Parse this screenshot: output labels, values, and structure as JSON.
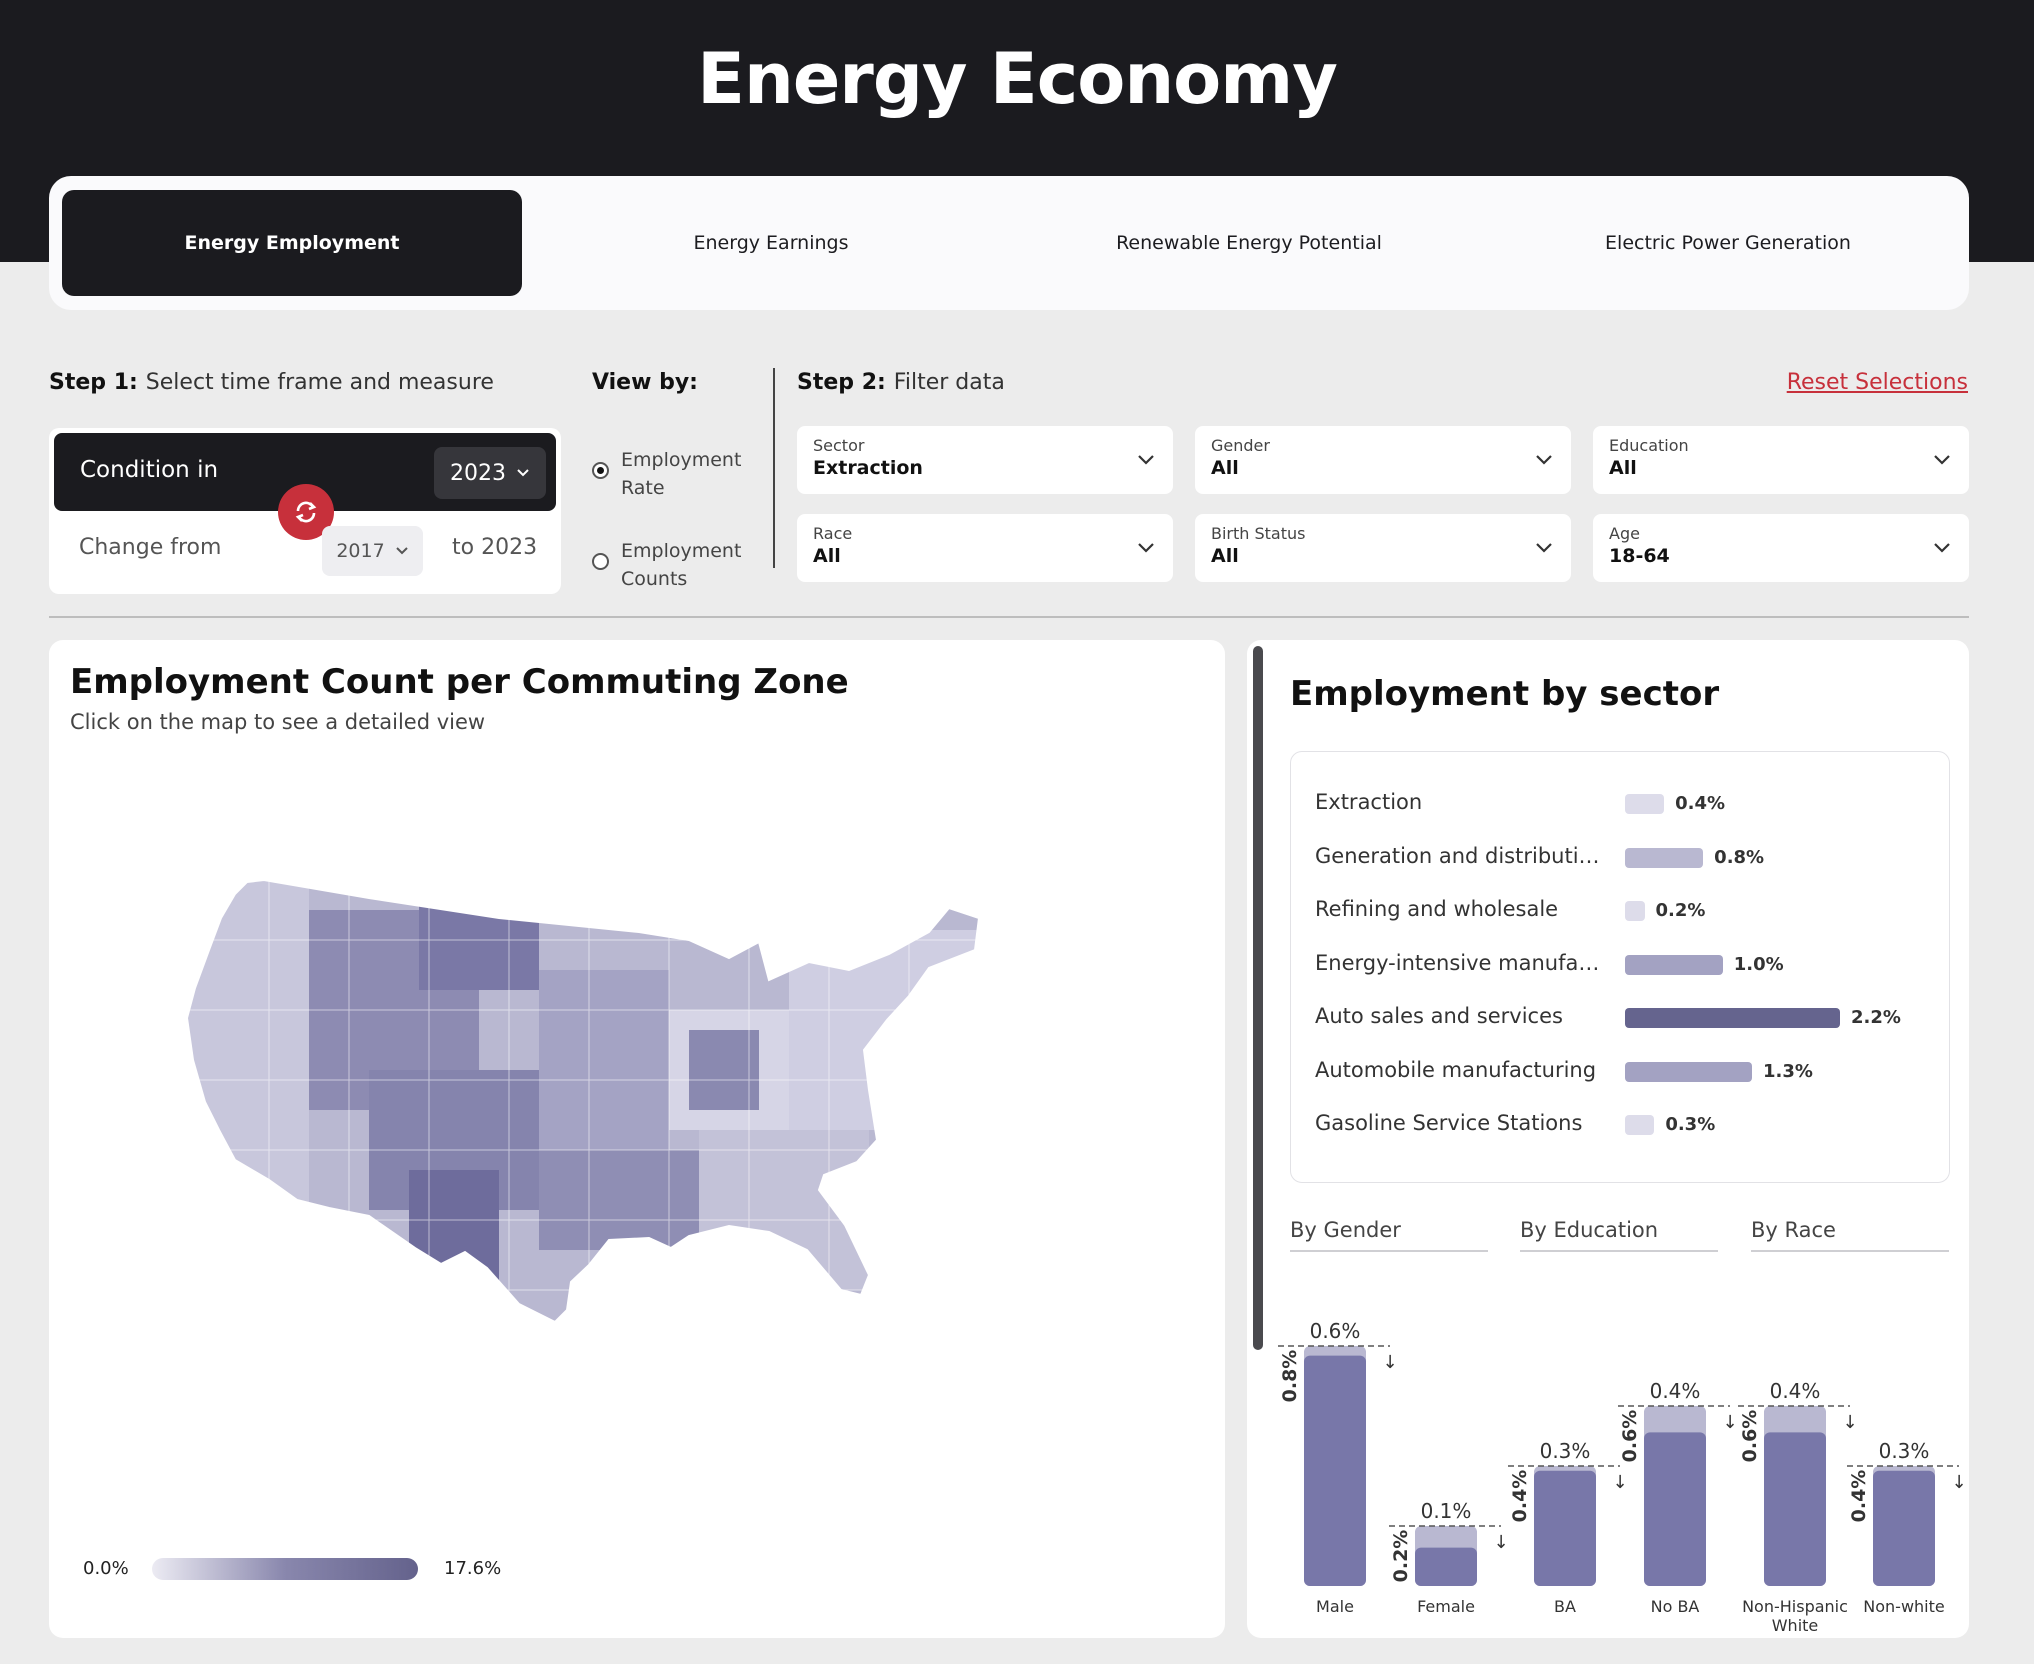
{
  "header": {
    "title": "Energy Economy"
  },
  "tabs": [
    {
      "label": "Energy Employment",
      "active": true
    },
    {
      "label": "Energy Earnings",
      "active": false
    },
    {
      "label": "Renewable Energy Potential",
      "active": false
    },
    {
      "label": "Electric Power Generation",
      "active": false
    }
  ],
  "step1": {
    "prefix": "Step 1:",
    "text": "Select time frame and measure",
    "condition_label": "Condition in",
    "condition_year": "2023",
    "change_label": "Change from",
    "change_from_year": "2017",
    "change_to": "to 2023"
  },
  "viewby": {
    "label": "View by:",
    "options": [
      {
        "label": "Employment Rate",
        "selected": true
      },
      {
        "label": "Employment Counts",
        "selected": false
      }
    ]
  },
  "step2": {
    "prefix": "Step 2:",
    "text": "Filter data",
    "reset": "Reset Selections",
    "filters": [
      {
        "label": "Sector",
        "value": "Extraction"
      },
      {
        "label": "Gender",
        "value": "All"
      },
      {
        "label": "Education",
        "value": "All"
      },
      {
        "label": "Race",
        "value": "All"
      },
      {
        "label": "Birth Status",
        "value": "All"
      },
      {
        "label": "Age",
        "value": "18-64"
      }
    ]
  },
  "map": {
    "title": "Employment Count per Commuting Zone",
    "subtitle": "Click on the map to see a detailed view",
    "legend_min": "0.0%",
    "legend_max": "17.6%"
  },
  "sector_panel": {
    "title": "Employment by sector",
    "group_headers": [
      "By Gender",
      "By Education",
      "By Race"
    ]
  },
  "colors": {
    "dark": "#1b1b1f",
    "accent_red": "#c7303b",
    "bar_dark": "#65648e",
    "bar_mid": "#7877a9",
    "bar_light": "#b9b8d1"
  },
  "icons": {
    "swap": "swap-arrows-icon",
    "chevron": "chevron-down-icon",
    "arrow": "arrow-down-icon"
  },
  "chart_data": [
    {
      "type": "bar",
      "title": "Employment by sector",
      "categories": [
        "Extraction",
        "Generation and distributi…",
        "Refining and wholesale",
        "Energy-intensive manufa…",
        "Auto sales and services",
        "Automobile manufacturing",
        "Gasoline Service Stations"
      ],
      "values": [
        0.4,
        0.8,
        0.2,
        1.0,
        2.2,
        1.3,
        0.3
      ],
      "labels": [
        "0.4%",
        "0.8%",
        "0.2%",
        "1.0%",
        "2.2%",
        "1.3%",
        "0.3%"
      ],
      "orientation": "horizontal",
      "unit": "%"
    },
    {
      "type": "bar",
      "title": "By Gender / By Education / By Race",
      "categories": [
        "Male",
        "Female",
        "BA",
        "No BA",
        "Non-Hispanic White",
        "Non-white"
      ],
      "series": [
        {
          "values": [
            0.8,
            0.2,
            0.4,
            0.6,
            0.6,
            0.4
          ],
          "labels": [
            "0.8%",
            "0.2%",
            "0.4%",
            "0.6%",
            "0.6%",
            "0.4%"
          ]
        },
        {
          "values": [
            0.6,
            0.1,
            0.3,
            0.4,
            0.4,
            0.3
          ],
          "labels": [
            "0.6%",
            "0.1%",
            "0.3%",
            "0.4%",
            "0.4%",
            "0.3%"
          ]
        }
      ],
      "unit": "%"
    }
  ]
}
